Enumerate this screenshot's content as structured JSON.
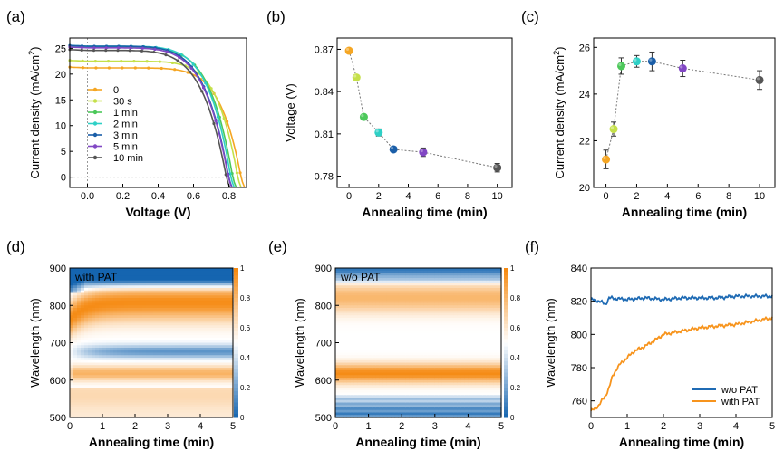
{
  "chart_data": [
    {
      "id": "a",
      "panel_label": "(a)",
      "type": "line",
      "xlabel": "Voltage (V)",
      "ylabel": "Current density (mA/cm²)",
      "ylabel_parts": [
        "Current density (mA/cm",
        "2",
        ")"
      ],
      "xlim": [
        -0.1,
        0.9
      ],
      "ylim": [
        -2,
        27
      ],
      "xticks": [
        0.0,
        0.2,
        0.4,
        0.6,
        0.8
      ],
      "xtick_labels": [
        "0.0",
        "0.2",
        "0.4",
        "0.6",
        "0.8"
      ],
      "yticks": [
        0,
        5,
        10,
        15,
        20,
        25
      ],
      "ytick_labels": [
        "0",
        "5",
        "10",
        "15",
        "20",
        "25"
      ],
      "legend_position": "center-left",
      "series": [
        {
          "name": "0",
          "color": "#f5a623",
          "jsc": 21.2,
          "voc": 0.869,
          "n": 3.2
        },
        {
          "name": "30 s",
          "color": "#c5e04a",
          "jsc": 22.5,
          "voc": 0.85,
          "n": 3.2
        },
        {
          "name": "1 min",
          "color": "#4cc85a",
          "jsc": 25.2,
          "voc": 0.822,
          "n": 2.8
        },
        {
          "name": "2 min",
          "color": "#2ed0c6",
          "jsc": 25.4,
          "voc": 0.811,
          "n": 2.8
        },
        {
          "name": "3 min",
          "color": "#1a5ea8",
          "jsc": 25.4,
          "voc": 0.799,
          "n": 2.6
        },
        {
          "name": "5 min",
          "color": "#8147c4",
          "jsc": 25.1,
          "voc": 0.797,
          "n": 2.6
        },
        {
          "name": "10 min",
          "color": "#555555",
          "jsc": 24.6,
          "voc": 0.786,
          "n": 2.5
        }
      ]
    },
    {
      "id": "b",
      "panel_label": "(b)",
      "type": "scatter",
      "xlabel": "Annealing time (min)",
      "ylabel": "Voltage (V)",
      "xlim": [
        -0.8,
        11
      ],
      "ylim": [
        0.772,
        0.878
      ],
      "xticks": [
        0,
        2,
        4,
        6,
        8,
        10
      ],
      "xtick_labels": [
        "0",
        "2",
        "4",
        "6",
        "8",
        "10"
      ],
      "yticks": [
        0.78,
        0.81,
        0.84,
        0.87
      ],
      "ytick_labels": [
        "0.78",
        "0.81",
        "0.84",
        "0.87"
      ],
      "points": [
        {
          "x": 0,
          "y": 0.869,
          "err": 0.0015,
          "color": "#f5a623"
        },
        {
          "x": 0.5,
          "y": 0.85,
          "err": 0.0015,
          "color": "#c5e04a"
        },
        {
          "x": 1,
          "y": 0.822,
          "err": 0.0015,
          "color": "#4cc85a"
        },
        {
          "x": 2,
          "y": 0.811,
          "err": 0.0025,
          "color": "#2ed0c6"
        },
        {
          "x": 3,
          "y": 0.799,
          "err": 0.001,
          "color": "#1a5ea8"
        },
        {
          "x": 5,
          "y": 0.797,
          "err": 0.003,
          "color": "#8147c4"
        },
        {
          "x": 10,
          "y": 0.786,
          "err": 0.003,
          "color": "#555555"
        }
      ]
    },
    {
      "id": "c",
      "panel_label": "(c)",
      "type": "scatter",
      "xlabel": "Annealing time (min)",
      "ylabel": "Current density (mA/cm²)",
      "ylabel_parts": [
        "Current density (mA/cm",
        "2",
        ")"
      ],
      "xlim": [
        -0.8,
        11
      ],
      "ylim": [
        20,
        26.4
      ],
      "xticks": [
        0,
        2,
        4,
        6,
        8,
        10
      ],
      "xtick_labels": [
        "0",
        "2",
        "4",
        "6",
        "8",
        "10"
      ],
      "yticks": [
        20,
        22,
        24,
        26
      ],
      "ytick_labels": [
        "20",
        "22",
        "24",
        "26"
      ],
      "points": [
        {
          "x": 0,
          "y": 21.2,
          "err": 0.4,
          "color": "#f5a623"
        },
        {
          "x": 0.5,
          "y": 22.5,
          "err": 0.3,
          "color": "#c5e04a"
        },
        {
          "x": 1,
          "y": 25.2,
          "err": 0.35,
          "color": "#4cc85a"
        },
        {
          "x": 2,
          "y": 25.4,
          "err": 0.25,
          "color": "#2ed0c6"
        },
        {
          "x": 3,
          "y": 25.4,
          "err": 0.4,
          "color": "#1a5ea8"
        },
        {
          "x": 5,
          "y": 25.1,
          "err": 0.35,
          "color": "#8147c4"
        },
        {
          "x": 10,
          "y": 24.6,
          "err": 0.4,
          "color": "#555555"
        }
      ]
    },
    {
      "id": "d",
      "panel_label": "(d)",
      "type": "heatmap",
      "annotation": "with PAT",
      "xlabel": "Annealing time (min)",
      "ylabel": "Wavelength (nm)",
      "xlim": [
        0,
        5
      ],
      "ylim": [
        500,
        900
      ],
      "xticks": [
        0,
        1,
        2,
        3,
        4,
        5
      ],
      "xtick_labels": [
        "0",
        "1",
        "2",
        "3",
        "4",
        "5"
      ],
      "yticks": [
        500,
        600,
        700,
        800,
        900
      ],
      "ytick_labels": [
        "500",
        "600",
        "700",
        "800",
        "900"
      ],
      "colorbar_range": [
        0,
        1
      ],
      "colorbar_ticks": [
        0,
        0.2,
        0.4,
        0.6,
        0.8,
        1
      ],
      "colorbar_labels": [
        "0",
        "0.2",
        "0.4",
        "0.6",
        "0.8",
        "1"
      ],
      "colormap": [
        "#1565b0",
        "#ffffff",
        "#f5870c"
      ]
    },
    {
      "id": "e",
      "panel_label": "(e)",
      "type": "heatmap",
      "annotation": "w/o PAT",
      "xlabel": "Annealing time (min)",
      "ylabel": "Wavelength (nm)",
      "xlim": [
        0,
        5
      ],
      "ylim": [
        500,
        900
      ],
      "xticks": [
        0,
        1,
        2,
        3,
        4,
        5
      ],
      "xtick_labels": [
        "0",
        "1",
        "2",
        "3",
        "4",
        "5"
      ],
      "yticks": [
        500,
        600,
        700,
        800,
        900
      ],
      "ytick_labels": [
        "500",
        "600",
        "700",
        "800",
        "900"
      ],
      "colorbar_range": [
        0,
        1
      ],
      "colorbar_ticks": [
        0,
        0.2,
        0.4,
        0.6,
        0.8,
        1
      ],
      "colorbar_labels": [
        "0",
        "0.2",
        "0.4",
        "0.6",
        "0.8",
        "1"
      ],
      "colormap": [
        "#1565b0",
        "#ffffff",
        "#f5870c"
      ]
    },
    {
      "id": "f",
      "panel_label": "(f)",
      "type": "line",
      "xlabel": "Annealing time (min)",
      "ylabel": "Wavelength (nm)",
      "xlim": [
        0,
        5
      ],
      "ylim": [
        750,
        840
      ],
      "xticks": [
        0,
        1,
        2,
        3,
        4,
        5
      ],
      "xtick_labels": [
        "0",
        "1",
        "2",
        "3",
        "4",
        "5"
      ],
      "yticks": [
        760,
        780,
        800,
        820,
        840
      ],
      "ytick_labels": [
        "760",
        "780",
        "800",
        "820",
        "840"
      ],
      "legend_position": "bottom-right",
      "series": [
        {
          "name": "w/o PAT",
          "color": "#1f6bb4",
          "x": [
            0,
            0.25,
            0.4,
            0.5,
            1,
            1.5,
            2,
            2.5,
            3,
            3.5,
            4,
            4.5,
            5
          ],
          "y": [
            821,
            820,
            818,
            822,
            821,
            822,
            821,
            822,
            822,
            822,
            823,
            823,
            823
          ]
        },
        {
          "name": "with PAT",
          "color": "#f7941d",
          "x": [
            0,
            0.1,
            0.2,
            0.3,
            0.4,
            0.5,
            0.6,
            0.7,
            0.8,
            1.0,
            1.2,
            1.5,
            1.8,
            2.0,
            2.5,
            3.0,
            3.5,
            4.0,
            4.5,
            5.0
          ],
          "y": [
            754,
            755,
            757,
            760,
            763,
            768,
            775,
            779,
            782,
            786,
            790,
            793,
            797,
            800,
            802,
            804,
            805,
            806,
            808,
            810
          ]
        }
      ]
    }
  ]
}
